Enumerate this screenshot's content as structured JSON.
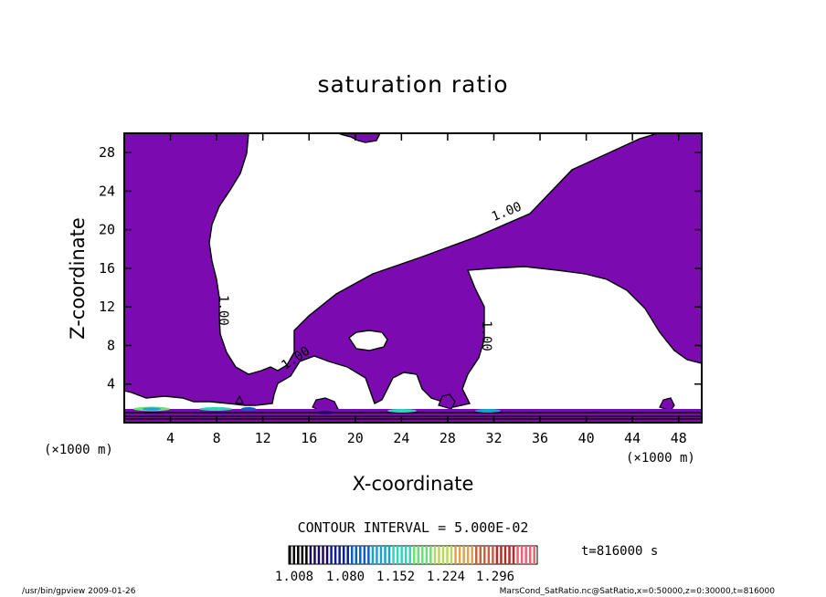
{
  "chart_data": {
    "type": "contour",
    "title": "saturation ratio",
    "xlabel": "X-coordinate",
    "ylabel": "Z-coordinate",
    "x_unit": "(×1000 m)",
    "y_unit": "(×1000 m)",
    "xlim": [
      0,
      50
    ],
    "ylim": [
      0,
      30
    ],
    "x_ticks": [
      4,
      8,
      12,
      16,
      20,
      24,
      28,
      32,
      36,
      40,
      44,
      48
    ],
    "y_ticks": [
      4,
      8,
      12,
      16,
      20,
      24,
      28
    ],
    "contour_interval_label": "CONTOUR INTERVAL = 5.000E-02",
    "contour_labels": [
      "1.00",
      "1.00",
      "1.00",
      "1.00"
    ],
    "time_label": "t=816000 s",
    "colorbar_ticks": [
      "1.008",
      "1.080",
      "1.152",
      "1.224",
      "1.296"
    ],
    "colorbar_colors": [
      "#000000",
      "#1a0a5a",
      "#0c1f9a",
      "#0a5ec8",
      "#13a6d0",
      "#2fd5b8",
      "#6ae07a",
      "#b7d85a",
      "#d7a64a",
      "#c9623a",
      "#b82a28",
      "#f06070"
    ],
    "fill_color": "#7b0bb0",
    "footer_left": "/usr/bin/gpview  2009-01-26",
    "footer_right": "MarsCond_SatRatio.nc@SatRatio,x=0:50000,z=0:30000,t=816000"
  }
}
